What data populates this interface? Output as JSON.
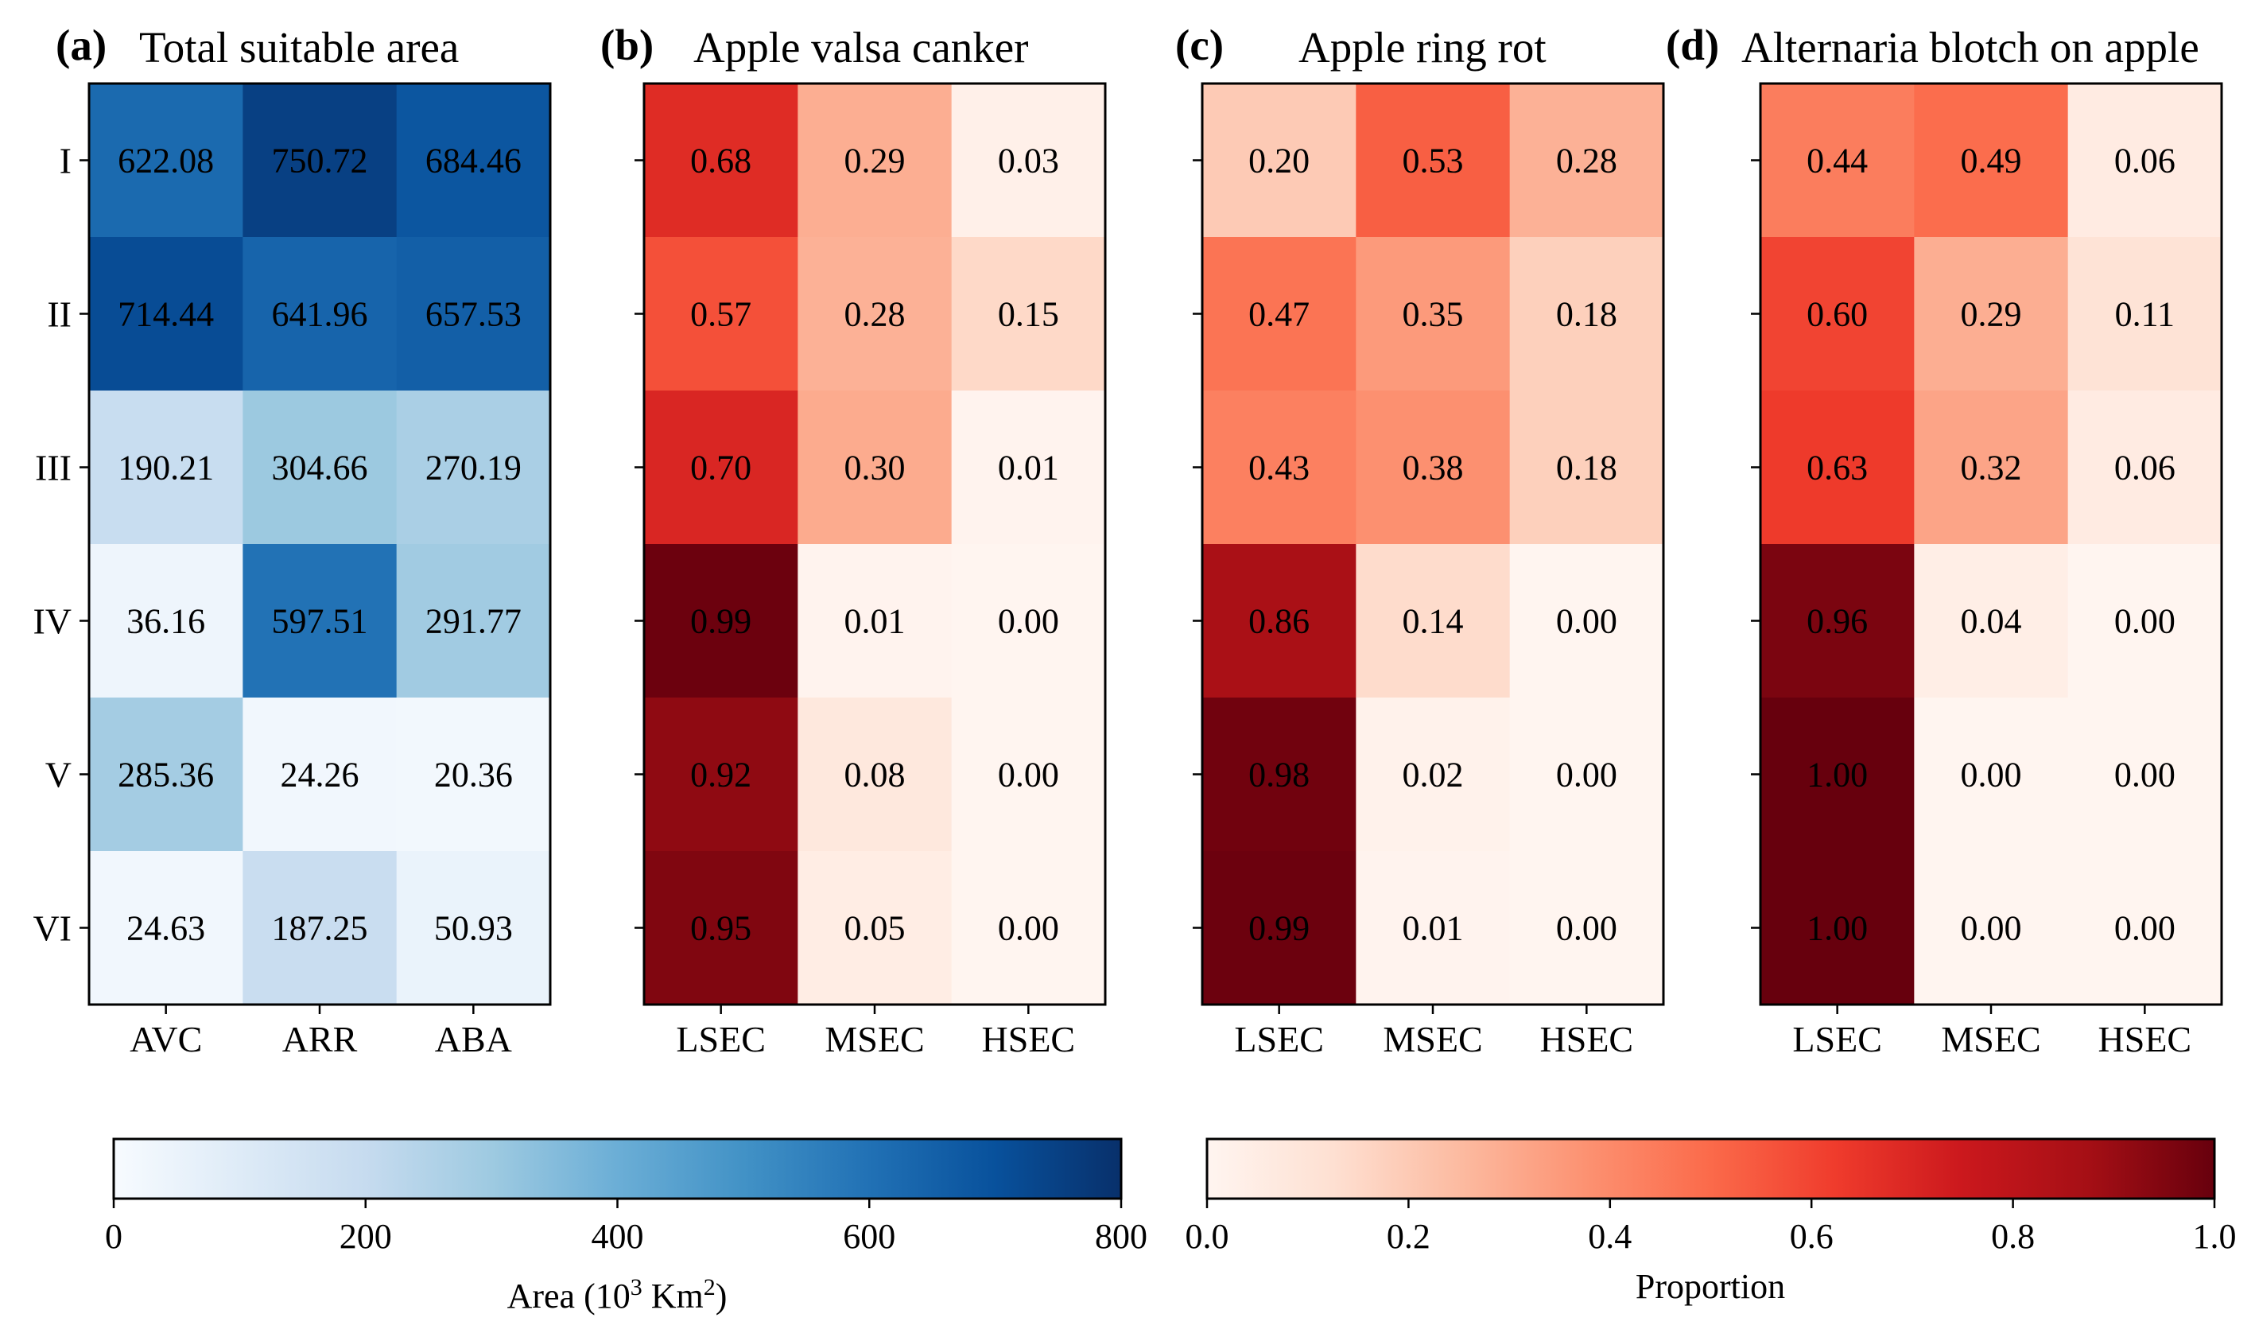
{
  "chart_data": [
    {
      "type": "heatmap",
      "panel_label": "(a)",
      "title": "Total suitable area",
      "rows": [
        "I",
        "II",
        "III",
        "IV",
        "V",
        "VI"
      ],
      "columns": [
        "AVC",
        "ARR",
        "ABA"
      ],
      "values": [
        [
          622.08,
          750.72,
          684.46
        ],
        [
          714.44,
          641.96,
          657.53
        ],
        [
          190.21,
          304.66,
          270.19
        ],
        [
          36.16,
          597.51,
          291.77
        ],
        [
          285.36,
          24.26,
          20.36
        ],
        [
          24.63,
          187.25,
          50.93
        ]
      ],
      "value_labels": [
        [
          "622.08",
          "750.72",
          "684.46"
        ],
        [
          "714.44",
          "641.96",
          "657.53"
        ],
        [
          "190.21",
          "304.66",
          "270.19"
        ],
        [
          "36.16",
          "597.51",
          "291.77"
        ],
        [
          "285.36",
          "24.26",
          "20.36"
        ],
        [
          "24.63",
          "187.25",
          "50.93"
        ]
      ],
      "colormap": "Blues",
      "vmin": 0,
      "vmax": 800
    },
    {
      "type": "heatmap",
      "panel_label": "(b)",
      "title": "Apple valsa canker",
      "rows": [
        "I",
        "II",
        "III",
        "IV",
        "V",
        "VI"
      ],
      "columns": [
        "LSEC",
        "MSEC",
        "HSEC"
      ],
      "values": [
        [
          0.68,
          0.29,
          0.03
        ],
        [
          0.57,
          0.28,
          0.15
        ],
        [
          0.7,
          0.3,
          0.01
        ],
        [
          0.99,
          0.01,
          0.0
        ],
        [
          0.92,
          0.08,
          0.0
        ],
        [
          0.95,
          0.05,
          0.0
        ]
      ],
      "value_labels": [
        [
          "0.68",
          "0.29",
          "0.03"
        ],
        [
          "0.57",
          "0.28",
          "0.15"
        ],
        [
          "0.70",
          "0.30",
          "0.01"
        ],
        [
          "0.99",
          "0.01",
          "0.00"
        ],
        [
          "0.92",
          "0.08",
          "0.00"
        ],
        [
          "0.95",
          "0.05",
          "0.00"
        ]
      ],
      "colormap": "Reds",
      "vmin": 0,
      "vmax": 1
    },
    {
      "type": "heatmap",
      "panel_label": "(c)",
      "title": "Apple ring rot",
      "rows": [
        "I",
        "II",
        "III",
        "IV",
        "V",
        "VI"
      ],
      "columns": [
        "LSEC",
        "MSEC",
        "HSEC"
      ],
      "values": [
        [
          0.2,
          0.53,
          0.28
        ],
        [
          0.47,
          0.35,
          0.18
        ],
        [
          0.43,
          0.38,
          0.18
        ],
        [
          0.86,
          0.14,
          0.0
        ],
        [
          0.98,
          0.02,
          0.0
        ],
        [
          0.99,
          0.01,
          0.0
        ]
      ],
      "value_labels": [
        [
          "0.20",
          "0.53",
          "0.28"
        ],
        [
          "0.47",
          "0.35",
          "0.18"
        ],
        [
          "0.43",
          "0.38",
          "0.18"
        ],
        [
          "0.86",
          "0.14",
          "0.00"
        ],
        [
          "0.98",
          "0.02",
          "0.00"
        ],
        [
          "0.99",
          "0.01",
          "0.00"
        ]
      ],
      "colormap": "Reds",
      "vmin": 0,
      "vmax": 1
    },
    {
      "type": "heatmap",
      "panel_label": "(d)",
      "title": "Alternaria blotch on apple",
      "rows": [
        "I",
        "II",
        "III",
        "IV",
        "V",
        "VI"
      ],
      "columns": [
        "LSEC",
        "MSEC",
        "HSEC"
      ],
      "values": [
        [
          0.44,
          0.49,
          0.06
        ],
        [
          0.6,
          0.29,
          0.11
        ],
        [
          0.63,
          0.32,
          0.06
        ],
        [
          0.96,
          0.04,
          0.0
        ],
        [
          1.0,
          0.0,
          0.0
        ],
        [
          1.0,
          0.0,
          0.0
        ]
      ],
      "value_labels": [
        [
          "0.44",
          "0.49",
          "0.06"
        ],
        [
          "0.60",
          "0.29",
          "0.11"
        ],
        [
          "0.63",
          "0.32",
          "0.06"
        ],
        [
          "0.96",
          "0.04",
          "0.00"
        ],
        [
          "1.00",
          "0.00",
          "0.00"
        ],
        [
          "1.00",
          "0.00",
          "0.00"
        ]
      ],
      "colormap": "Reds",
      "vmin": 0,
      "vmax": 1
    }
  ],
  "colorbars": [
    {
      "colormap": "Blues",
      "range": [
        0,
        800
      ],
      "ticks": [
        0,
        200,
        400,
        600,
        800
      ],
      "tick_labels": [
        "0",
        "200",
        "400",
        "600",
        "800"
      ],
      "label_prefix": "Area (10",
      "label_exponent": "3",
      "label_unit": " Km",
      "label_unit_exponent": "2",
      "label_suffix": ")"
    },
    {
      "colormap": "Reds",
      "range": [
        0,
        1
      ],
      "ticks": [
        0,
        0.2,
        0.4,
        0.6,
        0.8,
        1.0
      ],
      "tick_labels": [
        "0.0",
        "0.2",
        "0.4",
        "0.6",
        "0.8",
        "1.0"
      ],
      "label": "Proportion"
    }
  ]
}
